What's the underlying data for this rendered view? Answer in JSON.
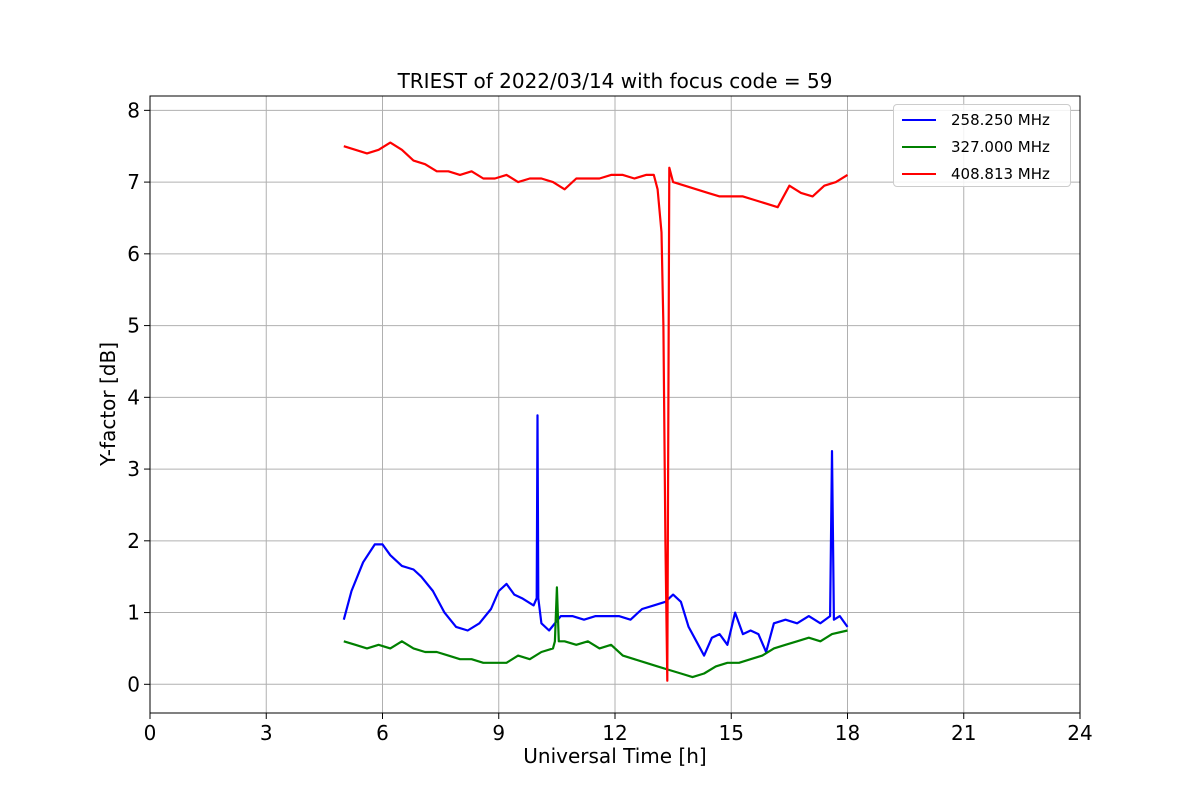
{
  "chart_data": {
    "type": "line",
    "title": "TRIEST of 2022/03/14 with focus code = 59",
    "xlabel": "Universal Time [h]",
    "ylabel": "Y-factor [dB]",
    "xlim": [
      0,
      24
    ],
    "ylim": [
      -0.4,
      8.2
    ],
    "xticks": [
      0,
      3,
      6,
      9,
      12,
      15,
      18,
      21,
      24
    ],
    "yticks": [
      0,
      1,
      2,
      3,
      4,
      5,
      6,
      7,
      8
    ],
    "grid": true,
    "legend_position": "top-right",
    "series": [
      {
        "name": "258.250 MHz",
        "color": "#0000ff",
        "x": [
          5.0,
          5.2,
          5.5,
          5.8,
          6.0,
          6.2,
          6.5,
          6.8,
          7.0,
          7.3,
          7.6,
          7.9,
          8.2,
          8.5,
          8.8,
          9.0,
          9.2,
          9.4,
          9.6,
          9.9,
          9.98,
          10.0,
          10.02,
          10.1,
          10.3,
          10.6,
          10.9,
          11.2,
          11.5,
          11.8,
          12.1,
          12.4,
          12.7,
          13.0,
          13.3,
          13.5,
          13.7,
          13.9,
          14.1,
          14.3,
          14.5,
          14.7,
          14.9,
          15.1,
          15.3,
          15.5,
          15.7,
          15.9,
          16.1,
          16.4,
          16.7,
          17.0,
          17.3,
          17.55,
          17.6,
          17.65,
          17.8,
          18.0
        ],
        "y": [
          0.9,
          1.3,
          1.7,
          1.95,
          1.95,
          1.8,
          1.65,
          1.6,
          1.5,
          1.3,
          1.0,
          0.8,
          0.75,
          0.85,
          1.05,
          1.3,
          1.4,
          1.25,
          1.2,
          1.1,
          1.2,
          3.75,
          1.2,
          0.85,
          0.75,
          0.95,
          0.95,
          0.9,
          0.95,
          0.95,
          0.95,
          0.9,
          1.05,
          1.1,
          1.15,
          1.25,
          1.15,
          0.8,
          0.6,
          0.4,
          0.65,
          0.7,
          0.55,
          1.0,
          0.7,
          0.75,
          0.7,
          0.45,
          0.85,
          0.9,
          0.85,
          0.95,
          0.85,
          0.95,
          3.25,
          0.9,
          0.95,
          0.8
        ]
      },
      {
        "name": "327.000 MHz",
        "color": "#008000",
        "x": [
          5.0,
          5.3,
          5.6,
          5.9,
          6.2,
          6.5,
          6.8,
          7.1,
          7.4,
          7.7,
          8.0,
          8.3,
          8.6,
          8.9,
          9.2,
          9.5,
          9.8,
          10.1,
          10.4,
          10.45,
          10.5,
          10.55,
          10.7,
          11.0,
          11.3,
          11.6,
          11.9,
          12.2,
          12.5,
          12.8,
          13.1,
          13.4,
          13.7,
          14.0,
          14.3,
          14.6,
          14.9,
          15.2,
          15.5,
          15.8,
          16.1,
          16.4,
          16.7,
          17.0,
          17.3,
          17.6,
          18.0
        ],
        "y": [
          0.6,
          0.55,
          0.5,
          0.55,
          0.5,
          0.6,
          0.5,
          0.45,
          0.45,
          0.4,
          0.35,
          0.35,
          0.3,
          0.3,
          0.3,
          0.4,
          0.35,
          0.45,
          0.5,
          0.6,
          1.35,
          0.6,
          0.6,
          0.55,
          0.6,
          0.5,
          0.55,
          0.4,
          0.35,
          0.3,
          0.25,
          0.2,
          0.15,
          0.1,
          0.15,
          0.25,
          0.3,
          0.3,
          0.35,
          0.4,
          0.5,
          0.55,
          0.6,
          0.65,
          0.6,
          0.7,
          0.75
        ]
      },
      {
        "name": "408.813 MHz",
        "color": "#ff0000",
        "x": [
          5.0,
          5.3,
          5.6,
          5.9,
          6.2,
          6.5,
          6.8,
          7.1,
          7.4,
          7.7,
          8.0,
          8.3,
          8.6,
          8.9,
          9.2,
          9.5,
          9.8,
          10.1,
          10.4,
          10.7,
          11.0,
          11.3,
          11.6,
          11.9,
          12.2,
          12.5,
          12.8,
          13.0,
          13.1,
          13.2,
          13.25,
          13.3,
          13.35,
          13.4,
          13.45,
          13.5,
          13.8,
          14.1,
          14.4,
          14.7,
          15.0,
          15.3,
          15.6,
          15.9,
          16.2,
          16.5,
          16.8,
          17.1,
          17.4,
          17.7,
          18.0
        ],
        "y": [
          7.5,
          7.45,
          7.4,
          7.45,
          7.55,
          7.45,
          7.3,
          7.25,
          7.15,
          7.15,
          7.1,
          7.15,
          7.05,
          7.05,
          7.1,
          7.0,
          7.05,
          7.05,
          7.0,
          6.9,
          7.05,
          7.05,
          7.05,
          7.1,
          7.1,
          7.05,
          7.1,
          7.1,
          6.9,
          6.3,
          5.0,
          2.0,
          0.05,
          7.2,
          7.1,
          7.0,
          6.95,
          6.9,
          6.85,
          6.8,
          6.8,
          6.8,
          6.75,
          6.7,
          6.65,
          6.95,
          6.85,
          6.8,
          6.95,
          7.0,
          7.1
        ]
      }
    ]
  }
}
